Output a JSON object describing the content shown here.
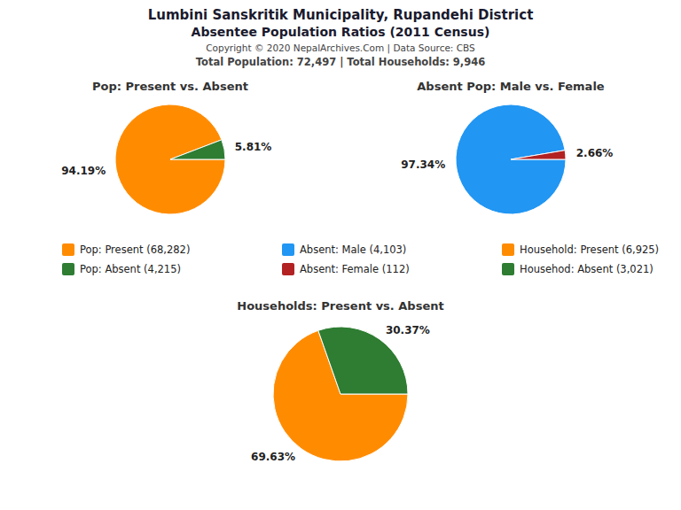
{
  "title": "Lumbini Sanskritik Municipality, Rupandehi District",
  "subtitle": "Absentee Population Ratios (2011 Census)",
  "annotations": [
    "Copyright © 2020 NepalArchives.Com | Data Source: CBS",
    "Total Population: 72,497 | Total Households: 9,946"
  ],
  "chart_data": [
    {
      "type": "pie",
      "title": "Pop: Present vs. Absent",
      "categories": [
        "Pop: Present (68,282)",
        "Pop: Absent (4,215)"
      ],
      "values": [
        94.19,
        5.81
      ],
      "value_labels": [
        "94.19%",
        "5.81%"
      ],
      "colors": [
        "#FF8C00",
        "#2E7D32"
      ],
      "data_labels": true
    },
    {
      "type": "pie",
      "title": "Absent Pop: Male vs. Female",
      "categories": [
        "Absent: Male (4,103)",
        "Absent: Female (112)"
      ],
      "values": [
        97.34,
        2.66
      ],
      "value_labels": [
        "97.34%",
        "2.66%"
      ],
      "colors": [
        "#2196F3",
        "#B22222"
      ],
      "data_labels": true
    },
    {
      "type": "pie",
      "title": "Households: Present vs. Absent",
      "categories": [
        "Household: Present (6,925)",
        "Househod: Absent (3,021)"
      ],
      "values": [
        69.63,
        30.37
      ],
      "value_labels": [
        "69.63%",
        "30.37%"
      ],
      "colors": [
        "#FF8C00",
        "#2E7D32"
      ],
      "data_labels": true
    }
  ]
}
